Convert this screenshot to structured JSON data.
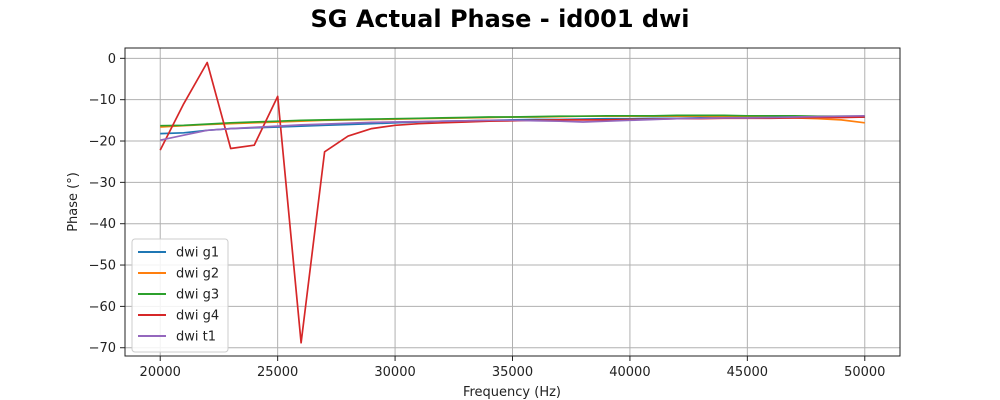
{
  "chart_data": {
    "type": "line",
    "title": "SG Actual Phase - id001 dwi",
    "xlabel": "Frequency (Hz)",
    "ylabel": "Phase (°)",
    "xlim": [
      18500,
      51500
    ],
    "ylim": [
      -72,
      2.5
    ],
    "xticks": [
      20000,
      25000,
      30000,
      35000,
      40000,
      45000,
      50000
    ],
    "yticks": [
      0,
      -10,
      -20,
      -30,
      -40,
      -50,
      -60,
      -70
    ],
    "grid": true,
    "legend_position": "lower-left",
    "x": [
      20000,
      21000,
      22000,
      23000,
      24000,
      25000,
      26000,
      27000,
      28000,
      29000,
      30000,
      31000,
      32000,
      33000,
      34000,
      35000,
      36000,
      37000,
      38000,
      39000,
      40000,
      41000,
      42000,
      43000,
      44000,
      45000,
      46000,
      47000,
      48000,
      49000,
      50000
    ],
    "series": [
      {
        "name": "dwi g1",
        "color": "#1f77b4",
        "values": [
          -18.2,
          -18.0,
          -17.4,
          -17.0,
          -16.8,
          -16.6,
          -16.4,
          -16.2,
          -16.0,
          -15.8,
          -15.6,
          -15.4,
          -15.2,
          -15.1,
          -15.0,
          -14.9,
          -14.8,
          -14.8,
          -14.7,
          -14.6,
          -14.6,
          -14.5,
          -14.5,
          -14.4,
          -14.4,
          -14.3,
          -14.3,
          -14.2,
          -14.2,
          -14.2,
          -14.2
        ]
      },
      {
        "name": "dwi g2",
        "color": "#ff7f0e",
        "values": [
          -16.6,
          -16.3,
          -16.0,
          -15.8,
          -15.6,
          -15.4,
          -15.2,
          -15.0,
          -14.9,
          -14.8,
          -14.7,
          -14.6,
          -14.5,
          -14.4,
          -14.3,
          -14.2,
          -14.2,
          -14.1,
          -14.0,
          -14.0,
          -14.0,
          -14.0,
          -14.0,
          -14.0,
          -14.1,
          -14.2,
          -14.3,
          -14.4,
          -14.6,
          -14.9,
          -15.6
        ]
      },
      {
        "name": "dwi g3",
        "color": "#2ca02c",
        "values": [
          -16.3,
          -16.2,
          -15.9,
          -15.6,
          -15.4,
          -15.2,
          -15.0,
          -14.9,
          -14.8,
          -14.7,
          -14.6,
          -14.5,
          -14.4,
          -14.3,
          -14.2,
          -14.2,
          -14.1,
          -14.0,
          -14.0,
          -13.9,
          -13.9,
          -13.9,
          -13.8,
          -13.8,
          -13.8,
          -13.9,
          -13.9,
          -13.9,
          -14.0,
          -14.0,
          -14.0
        ]
      },
      {
        "name": "dwi g4",
        "color": "#d62728",
        "values": [
          -22.2,
          -11.0,
          -1.0,
          -21.8,
          -21.0,
          -9.2,
          -68.8,
          -22.6,
          -18.8,
          -17.0,
          -16.2,
          -15.8,
          -15.6,
          -15.4,
          -15.2,
          -15.1,
          -15.0,
          -14.9,
          -14.9,
          -14.9,
          -14.8,
          -14.7,
          -14.6,
          -14.6,
          -14.5,
          -14.5,
          -14.5,
          -14.4,
          -14.3,
          -14.3,
          -14.2
        ]
      },
      {
        "name": "dwi t1",
        "color": "#9467bd",
        "values": [
          -19.8,
          -18.6,
          -17.4,
          -17.0,
          -16.7,
          -16.4,
          -16.1,
          -15.9,
          -15.7,
          -15.5,
          -15.4,
          -15.3,
          -15.2,
          -15.1,
          -15.0,
          -15.0,
          -15.1,
          -15.2,
          -15.4,
          -15.2,
          -15.0,
          -14.8,
          -14.6,
          -14.5,
          -14.4,
          -14.4,
          -14.3,
          -14.2,
          -14.1,
          -14.0,
          -13.9
        ]
      }
    ]
  }
}
